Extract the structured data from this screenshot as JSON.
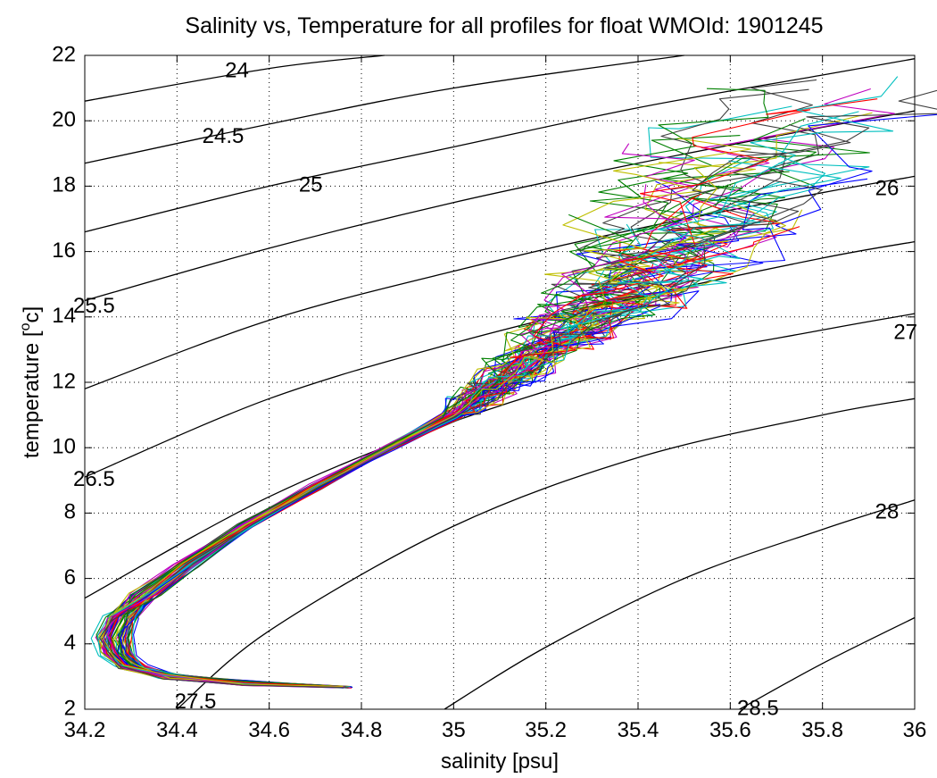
{
  "chart_data": {
    "type": "line",
    "title": "Salinity vs, Temperature for all profiles for float WMOId: 1901245",
    "xlabel": "salinity [psu]",
    "ylabel_main": "temperature [",
    "ylabel_sup": "o",
    "ylabel_tail": "c]",
    "xlim": [
      34.2,
      36.0
    ],
    "ylim": [
      2,
      22
    ],
    "xticks": [
      34.2,
      34.4,
      34.6,
      34.8,
      35.0,
      35.2,
      35.4,
      35.6,
      35.8,
      36.0
    ],
    "xtick_labels": [
      "34.2",
      "34.4",
      "34.6",
      "34.8",
      "35",
      "35.2",
      "35.4",
      "35.6",
      "35.8",
      "36"
    ],
    "yticks": [
      2,
      4,
      6,
      8,
      10,
      12,
      14,
      16,
      18,
      20,
      22
    ],
    "ytick_labels": [
      "2",
      "4",
      "6",
      "8",
      "10",
      "12",
      "14",
      "16",
      "18",
      "20",
      "22"
    ],
    "grid": true,
    "grid_style": "dotted",
    "density_contours": [
      {
        "label": "24",
        "points": [
          [
            34.2,
            20.6
          ],
          [
            34.6,
            21.6
          ],
          [
            34.85,
            22.0
          ]
        ],
        "label_at": [
          34.53,
          21.5
        ]
      },
      {
        "label": "24.5",
        "points": [
          [
            34.2,
            18.7
          ],
          [
            34.6,
            19.9
          ],
          [
            35.0,
            21.0
          ],
          [
            35.5,
            22.0
          ]
        ],
        "label_at": [
          34.5,
          19.5
        ]
      },
      {
        "label": "25",
        "points": [
          [
            34.2,
            16.6
          ],
          [
            34.6,
            18.0
          ],
          [
            35.0,
            19.2
          ],
          [
            35.4,
            20.4
          ],
          [
            35.8,
            21.4
          ],
          [
            36.0,
            21.9
          ]
        ],
        "label_at": [
          34.69,
          18.0
        ]
      },
      {
        "label": "25.5",
        "points": [
          [
            34.2,
            14.5
          ],
          [
            34.6,
            16.1
          ],
          [
            35.0,
            17.5
          ],
          [
            35.4,
            18.7
          ],
          [
            35.8,
            19.8
          ],
          [
            36.0,
            20.3
          ]
        ],
        "label_at": [
          34.22,
          14.3
        ]
      },
      {
        "label": "26",
        "points": [
          [
            34.2,
            11.8
          ],
          [
            34.6,
            13.9
          ],
          [
            35.0,
            15.4
          ],
          [
            35.4,
            16.7
          ],
          [
            35.8,
            17.8
          ],
          [
            36.0,
            18.3
          ]
        ],
        "label_at": [
          35.94,
          17.9
        ]
      },
      {
        "label": "26.5",
        "points": [
          [
            34.2,
            9.1
          ],
          [
            34.6,
            11.5
          ],
          [
            35.0,
            13.2
          ],
          [
            35.4,
            14.6
          ],
          [
            35.8,
            15.8
          ],
          [
            36.0,
            16.3
          ]
        ],
        "label_at": [
          34.22,
          9.0
        ]
      },
      {
        "label": "27",
        "points": [
          [
            34.2,
            5.4
          ],
          [
            34.6,
            8.5
          ],
          [
            35.0,
            10.8
          ],
          [
            35.4,
            12.5
          ],
          [
            35.8,
            13.6
          ],
          [
            36.0,
            14.1
          ]
        ],
        "label_at": [
          35.98,
          13.5
        ]
      },
      {
        "label": "27.5",
        "points": [
          [
            34.4,
            2.0
          ],
          [
            34.6,
            4.4
          ],
          [
            35.0,
            7.6
          ],
          [
            35.4,
            9.7
          ],
          [
            35.8,
            11.0
          ],
          [
            36.0,
            11.5
          ]
        ],
        "label_at": [
          34.44,
          2.2
        ]
      },
      {
        "label": "28",
        "points": [
          [
            34.98,
            2.0
          ],
          [
            35.2,
            3.9
          ],
          [
            35.5,
            6.0
          ],
          [
            35.8,
            7.5
          ],
          [
            36.0,
            8.4
          ]
        ],
        "label_at": [
          35.94,
          8.0
        ]
      },
      {
        "label": "28.5",
        "points": [
          [
            35.62,
            2.0
          ],
          [
            35.8,
            3.4
          ],
          [
            36.0,
            4.8
          ]
        ],
        "label_at": [
          35.66,
          2.0
        ]
      }
    ],
    "profile_colors": [
      "#0000ff",
      "#008000",
      "#ff0000",
      "#00bfbf",
      "#bf00bf",
      "#bfbf00",
      "#3f3f3f"
    ],
    "profile_count": 70,
    "profile_backbone": [
      [
        34.77,
        2.7
      ],
      [
        34.55,
        2.8
      ],
      [
        34.38,
        3.0
      ],
      [
        34.3,
        3.3
      ],
      [
        34.27,
        3.7
      ],
      [
        34.26,
        4.2
      ],
      [
        34.28,
        4.8
      ],
      [
        34.33,
        5.5
      ],
      [
        34.42,
        6.4
      ],
      [
        34.55,
        7.6
      ],
      [
        34.7,
        8.8
      ],
      [
        34.86,
        10.0
      ],
      [
        35.0,
        11.0
      ],
      [
        35.12,
        12.2
      ],
      [
        35.25,
        13.6
      ],
      [
        35.38,
        14.8
      ],
      [
        35.5,
        16.4
      ],
      [
        35.62,
        18.3
      ],
      [
        35.75,
        20.0
      ],
      [
        35.87,
        21.5
      ]
    ],
    "profile_spread": [
      [
        2.7,
        0.005
      ],
      [
        3.2,
        0.03
      ],
      [
        4.2,
        0.04
      ],
      [
        5.5,
        0.03
      ],
      [
        8.0,
        0.015
      ],
      [
        10.0,
        0.01
      ],
      [
        11.5,
        0.03
      ],
      [
        13.0,
        0.06
      ],
      [
        15.0,
        0.12
      ],
      [
        18.0,
        0.18
      ],
      [
        21.5,
        0.2
      ]
    ],
    "profile_top_t_range": [
      12.2,
      21.7
    ]
  }
}
